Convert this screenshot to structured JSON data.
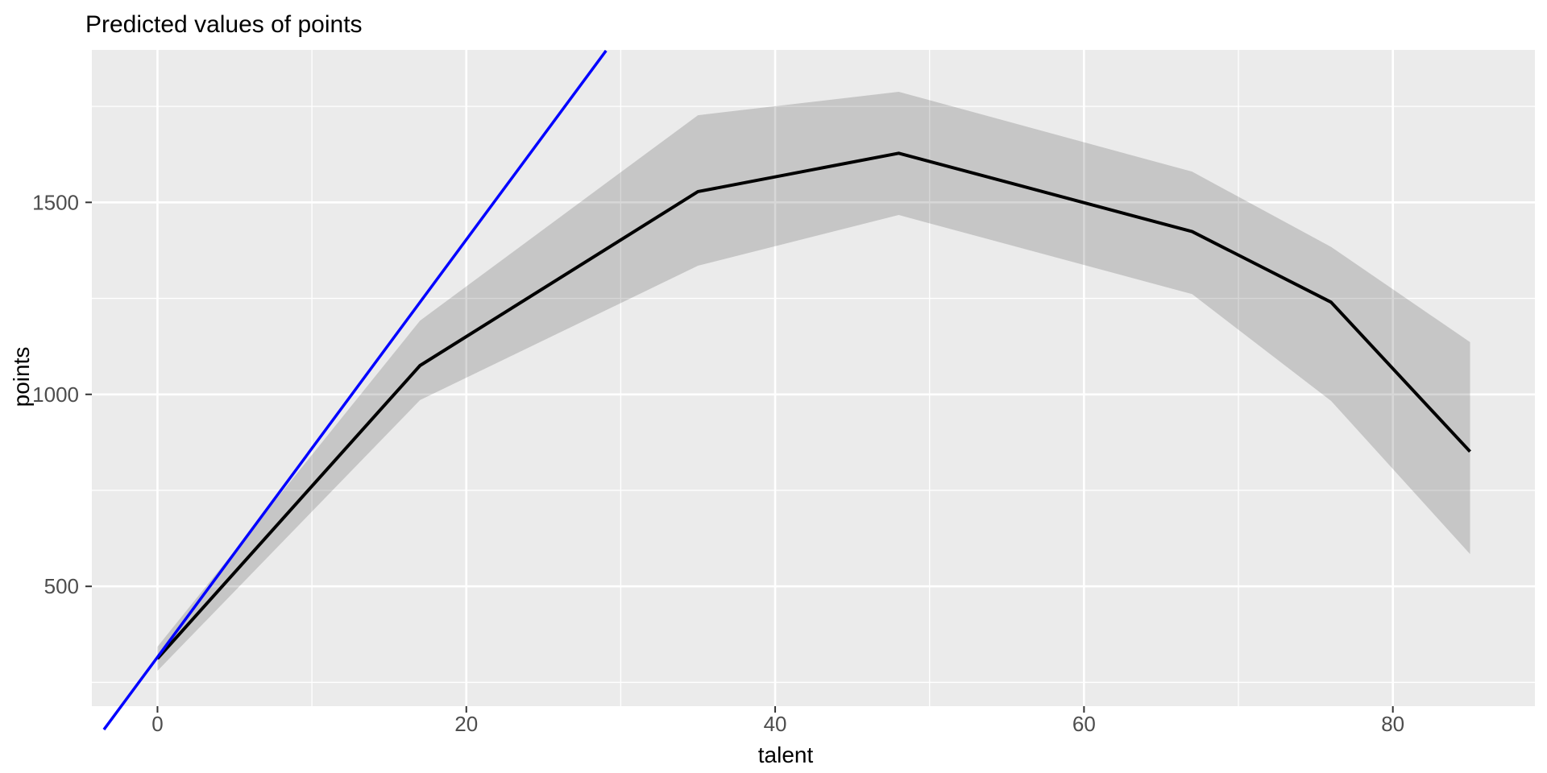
{
  "chart_data": {
    "type": "line",
    "title": "Predicted values of points",
    "xlabel": "talent",
    "ylabel": "points",
    "xlim": [
      -4.25,
      89.2
    ],
    "ylim": [
      188,
      1897
    ],
    "x_major_ticks": [
      0,
      20,
      40,
      60,
      80
    ],
    "x_minor_gridlines": [
      10,
      30,
      50,
      70
    ],
    "y_major_ticks": [
      500,
      1000,
      1500
    ],
    "y_minor_gridlines": [
      250,
      750,
      1250,
      1750
    ],
    "grid": "white major+minor gridlines on gray panel",
    "legend": "none",
    "panel_bg": "#EBEBEB",
    "tick_color": "#333333",
    "tick_label_color": "#4D4D4D",
    "series": [
      {
        "name": "predicted points with confidence band",
        "type": "line",
        "color": "#000000",
        "x": [
          0,
          17,
          35,
          48,
          67,
          76,
          85
        ],
        "y": [
          312,
          1075,
          1528,
          1628,
          1424,
          1240,
          851
        ],
        "ci_lower": [
          280,
          985,
          1335,
          1467,
          1261,
          983,
          584
        ],
        "ci_upper": [
          343,
          1192,
          1727,
          1788,
          1580,
          1384,
          1136
        ],
        "ribbon_color": "rgba(0,0,0,0.155)"
      },
      {
        "name": "linear reference line",
        "type": "line",
        "color": "#0000FF",
        "x": [
          -3.47,
          29.05
        ],
        "y": [
          127,
          1895
        ]
      }
    ]
  }
}
